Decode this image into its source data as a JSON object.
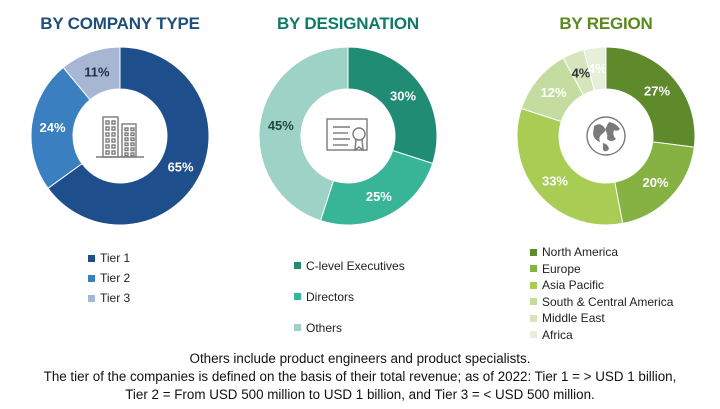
{
  "chart_data": [
    {
      "type": "pie",
      "title": "BY COMPANY TYPE",
      "title_color": "#1f4e79",
      "categories": [
        "Tier 1",
        "Tier 2",
        "Tier 3"
      ],
      "values": [
        65,
        24,
        11
      ],
      "labels": [
        "65%",
        "24%",
        "11%"
      ],
      "colors": [
        "#1f4e8c",
        "#3a7fc0",
        "#a7b7d3"
      ],
      "label_colors": [
        "#ffffff",
        "#ffffff",
        "#1f2f4f"
      ],
      "center_icon": "buildings-icon",
      "legend": "bottom"
    },
    {
      "type": "pie",
      "title": "BY DESIGNATION",
      "title_color": "#0f7a66",
      "categories": [
        "C-level Executives",
        "Directors",
        "Others"
      ],
      "values": [
        30,
        25,
        45
      ],
      "labels": [
        "30%",
        "25%",
        "45%"
      ],
      "colors": [
        "#1f8c73",
        "#38b497",
        "#9ed2c6"
      ],
      "label_colors": [
        "#ffffff",
        "#ffffff",
        "#1f4a40"
      ],
      "center_icon": "certificate-icon",
      "legend": "bottom"
    },
    {
      "type": "pie",
      "title": "BY REGION",
      "title_color": "#5a8a1f",
      "categories": [
        "North America",
        "Europe",
        "Asia Pacific",
        "South & Central America",
        "Middle East",
        "Africa"
      ],
      "values": [
        27,
        20,
        33,
        12,
        4,
        4
      ],
      "labels": [
        "27%",
        "20%",
        "33%",
        "12%",
        "4%",
        "4%"
      ],
      "colors": [
        "#5f8a2c",
        "#86b143",
        "#a9cc55",
        "#c5dca0",
        "#d6e5bd",
        "#e6efd9"
      ],
      "label_colors": [
        "#ffffff",
        "#ffffff",
        "#ffffff",
        "#ffffff",
        "#333333",
        "#ffffff"
      ],
      "center_icon": "globe-icon",
      "legend": "bottom"
    }
  ],
  "footnote": {
    "line1": "Others include product engineers and product specialists.",
    "line2": "The tier of the companies is defined on the basis of their total revenue; as of 2022: Tier 1 = > USD 1 billion,",
    "line3": "Tier 2 = From USD 500 million to USD 1 billion, and Tier 3 = < USD 500 million."
  }
}
